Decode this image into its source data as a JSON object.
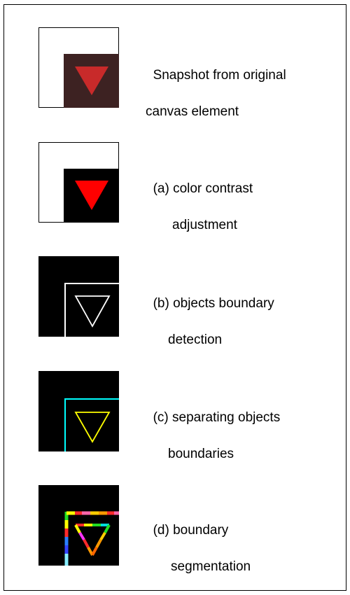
{
  "captions": [
    {
      "line1": "Snapshot from original",
      "line2": "canvas element"
    },
    {
      "line1": "(a) color contrast",
      "line2": "adjustment"
    },
    {
      "line1": "(b) objects boundary",
      "line2": "detection"
    },
    {
      "line1": "(c) separating objects",
      "line2": "boundaries"
    },
    {
      "line1": "(d) boundary",
      "line2": "segmentation"
    }
  ],
  "colors": {
    "original_square": "#3d2222",
    "original_triangle": "#c82a2a",
    "contrast_square": "#000000",
    "contrast_triangle": "#ff0000",
    "boundary_stroke": "#ffffff",
    "separated_square": "#00ffff",
    "separated_triangle": "#ffff00"
  }
}
